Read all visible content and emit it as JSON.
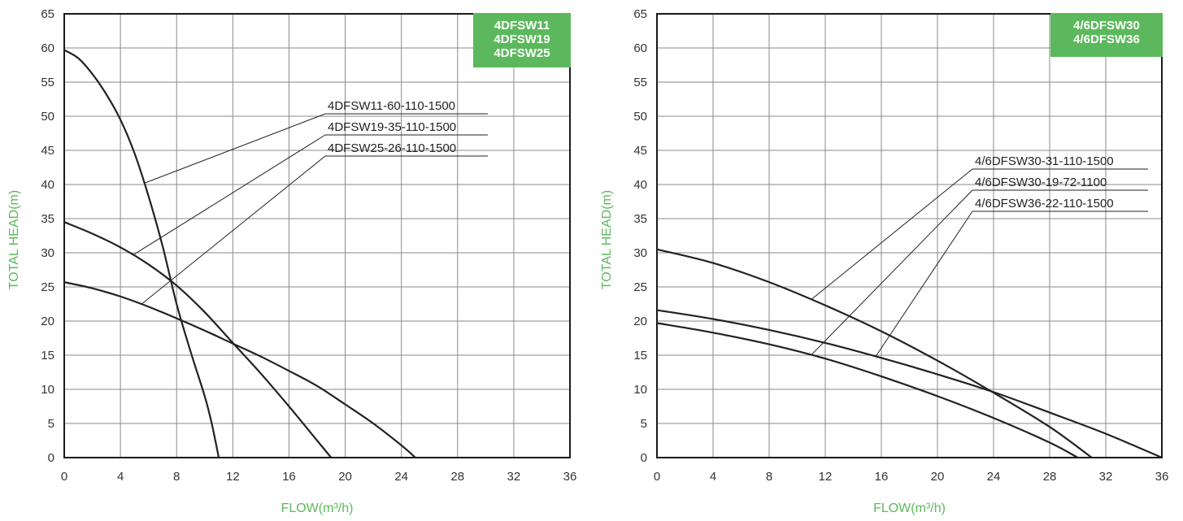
{
  "colors": {
    "accent": "#5cb85c",
    "curve": "#222222",
    "grid": "#8a8a8a",
    "frame": "#1a1a1a"
  },
  "chart_data": [
    {
      "type": "line",
      "badge": [
        "4DFSW11",
        "4DFSW19",
        "4DFSW25"
      ],
      "xlabel": "FLOW(m³/h)",
      "ylabel": "TOTAL HEAD(m)",
      "xlim": [
        0,
        36
      ],
      "ylim": [
        0,
        65
      ],
      "xticks": [
        0,
        4,
        8,
        12,
        16,
        20,
        24,
        28,
        32,
        36
      ],
      "yticks": [
        0,
        5,
        10,
        15,
        20,
        25,
        30,
        35,
        40,
        45,
        50,
        55,
        60,
        65
      ],
      "grid": true,
      "series": [
        {
          "name": "4DFSW11-60-110-1500",
          "x": [
            0,
            1,
            2,
            3,
            4,
            5,
            6,
            7,
            8,
            9,
            10,
            10.5,
            11
          ],
          "y": [
            59.7,
            58.5,
            56.2,
            53.2,
            49.5,
            44.6,
            38.3,
            31.0,
            22.5,
            15.5,
            9.0,
            5.0,
            0
          ]
        },
        {
          "name": "4DFSW19-35-110-1500",
          "x": [
            0,
            2,
            4,
            6,
            8,
            10,
            12,
            14,
            16,
            18,
            19
          ],
          "y": [
            34.5,
            32.8,
            30.8,
            28.3,
            25.2,
            21.3,
            16.8,
            12.3,
            7.5,
            2.5,
            0
          ]
        },
        {
          "name": "4DFSW25-26-110-1500",
          "x": [
            0,
            2,
            4,
            6,
            8,
            10,
            12,
            14,
            16,
            18,
            20,
            22,
            24,
            25
          ],
          "y": [
            25.7,
            24.8,
            23.6,
            22.1,
            20.4,
            18.6,
            16.7,
            14.8,
            12.7,
            10.5,
            7.8,
            5.0,
            1.8,
            0
          ]
        }
      ],
      "callouts": [
        {
          "series": 0,
          "at_x": 5.7
        },
        {
          "series": 1,
          "at_x": 4.9
        },
        {
          "series": 2,
          "at_x": 5.5
        }
      ]
    },
    {
      "type": "line",
      "badge": [
        "4/6DFSW30",
        "4/6DFSW36"
      ],
      "xlabel": "FLOW(m³/h)",
      "ylabel": "TOTAL HEAD(m)",
      "xlim": [
        0,
        36
      ],
      "ylim": [
        0,
        65
      ],
      "xticks": [
        0,
        4,
        8,
        12,
        16,
        20,
        24,
        28,
        32,
        36
      ],
      "yticks": [
        0,
        5,
        10,
        15,
        20,
        25,
        30,
        35,
        40,
        45,
        50,
        55,
        60,
        65
      ],
      "grid": true,
      "series": [
        {
          "name": "4/6DFSW30-31-110-1500",
          "x": [
            0,
            4,
            8,
            12,
            16,
            20,
            24,
            28,
            31
          ],
          "y": [
            30.5,
            28.5,
            25.7,
            22.3,
            18.5,
            14.2,
            9.5,
            4.5,
            0
          ]
        },
        {
          "name": "4/6DFSW30-19-72-1100",
          "x": [
            0,
            4,
            8,
            12,
            16,
            20,
            24,
            28,
            30
          ],
          "y": [
            19.7,
            18.3,
            16.6,
            14.5,
            11.9,
            9.0,
            5.8,
            2.2,
            0
          ]
        },
        {
          "name": "4/6DFSW36-22-110-1500",
          "x": [
            0,
            4,
            8,
            12,
            16,
            20,
            24,
            28,
            32,
            36
          ],
          "y": [
            21.6,
            20.3,
            18.7,
            16.8,
            14.6,
            12.2,
            9.6,
            6.6,
            3.5,
            0
          ]
        }
      ],
      "callouts": [
        {
          "series": 0,
          "at_x": 11.0
        },
        {
          "series": 1,
          "at_x": 11.0
        },
        {
          "series": 2,
          "at_x": 15.6
        }
      ]
    }
  ]
}
